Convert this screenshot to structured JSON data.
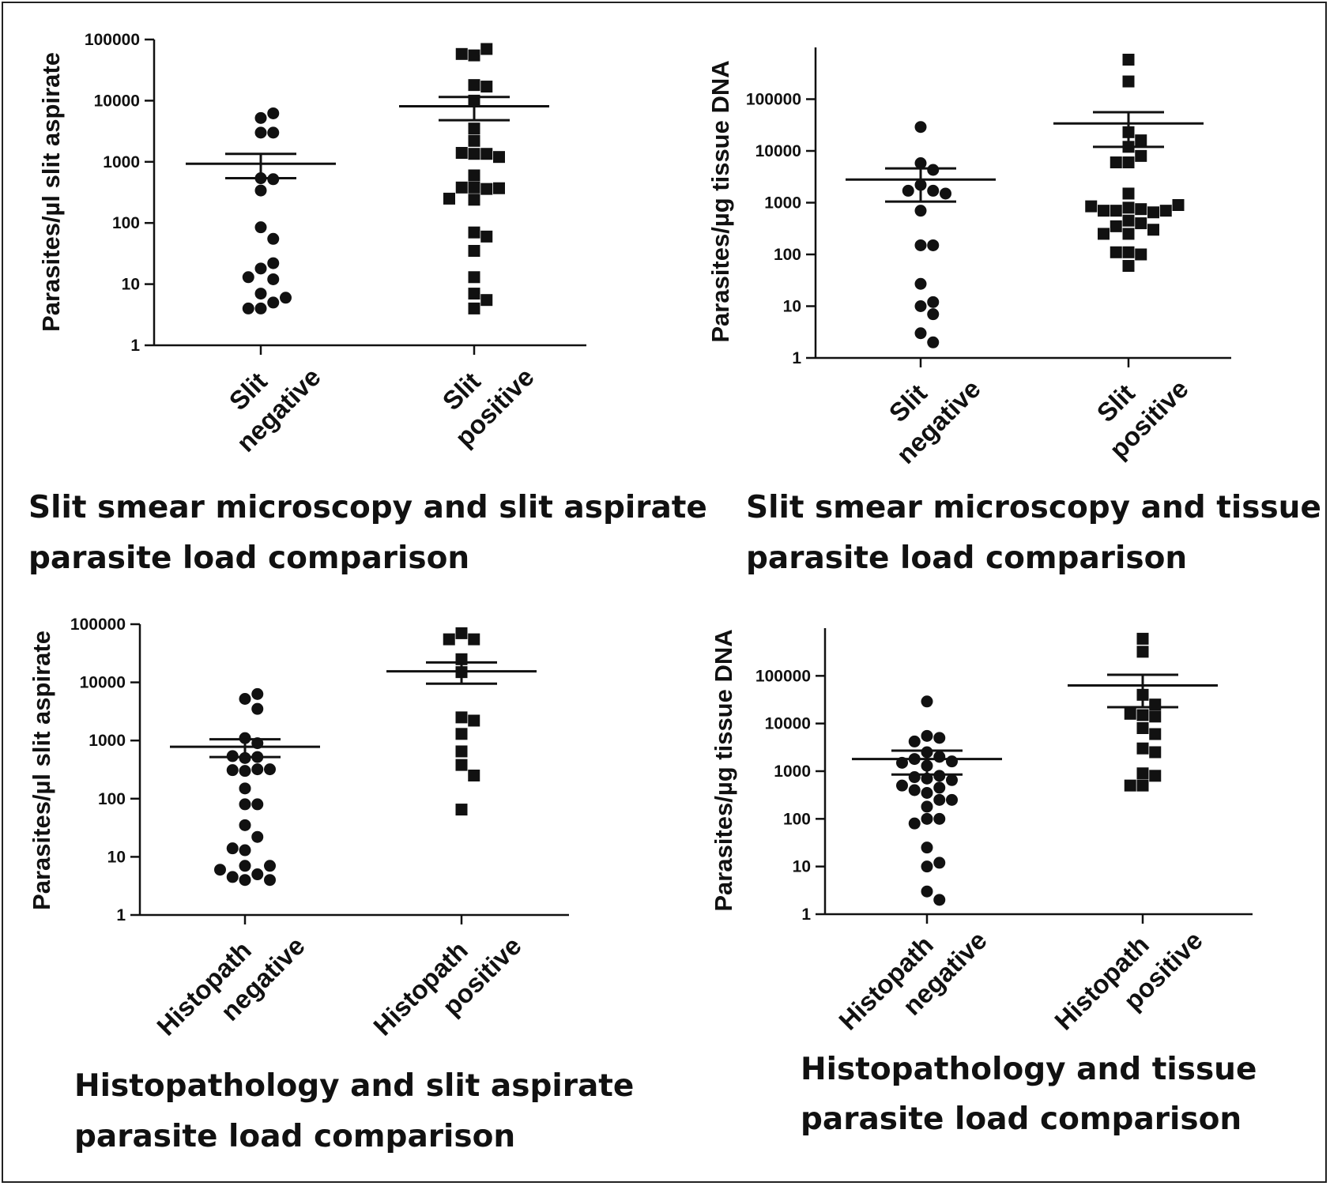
{
  "chart_data": [
    {
      "type": "scatter",
      "caption": [
        "Slit smear microscopy and slit aspirate",
        "parasite load comparison"
      ],
      "ylabel": "Parasites/µl slit aspirate",
      "yscale": "log",
      "ylim": [
        1,
        100000
      ],
      "yticks": [
        "1",
        "10",
        "100",
        "1000",
        "10000",
        "100000"
      ],
      "categories": [
        [
          "Slit",
          "negative"
        ],
        [
          "Slit",
          "positive"
        ]
      ],
      "series": [
        {
          "marker": "circle",
          "mean": 930,
          "sem": [
            540,
            1350
          ],
          "values": [
            5200,
            6200,
            3000,
            3000,
            540,
            340,
            520,
            85,
            55,
            18,
            12,
            13,
            22,
            7,
            5,
            4,
            4,
            6
          ]
        },
        {
          "marker": "square",
          "mean": 8100,
          "sem": [
            4800,
            11500
          ],
          "values": [
            55000,
            70000,
            58000,
            18000,
            17000,
            10000,
            3500,
            2200,
            1350,
            1350,
            1400,
            1200,
            600,
            380,
            360,
            380,
            370,
            250,
            240,
            70,
            60,
            35,
            13,
            7,
            5.5,
            4
          ]
        }
      ]
    },
    {
      "type": "scatter",
      "caption": [
        "Slit smear microscopy and tissue",
        "parasite load comparison"
      ],
      "ylabel": "Parasites/µg tissue DNA",
      "yscale": "log",
      "ylim": [
        1,
        1000000
      ],
      "yticks": [
        "1",
        "10",
        "100",
        "1000",
        "10000",
        "100000"
      ],
      "categories": [
        [
          "Slit",
          "negative"
        ],
        [
          "Slit",
          "positive"
        ]
      ],
      "series": [
        {
          "marker": "circle",
          "mean": 2800,
          "sem": [
            1050,
            4600
          ],
          "values": [
            29000,
            5800,
            4300,
            2200,
            1700,
            1700,
            1500,
            700,
            150,
            150,
            27,
            10,
            12,
            7,
            3,
            2
          ]
        },
        {
          "marker": "square",
          "mean": 34000,
          "sem": [
            12000,
            56000
          ],
          "values": [
            580000,
            220000,
            23000,
            16000,
            12000,
            8000,
            6000,
            6000,
            1500,
            800,
            750,
            700,
            650,
            700,
            700,
            850,
            900,
            450,
            400,
            350,
            300,
            250,
            250,
            110,
            100,
            110,
            60
          ]
        }
      ]
    },
    {
      "type": "scatter",
      "caption": [
        "Histopathology and slit aspirate",
        "parasite load comparison"
      ],
      "ylabel": "Parasites/µl slit aspirate",
      "yscale": "log",
      "ylim": [
        1,
        100000
      ],
      "yticks": [
        "1",
        "10",
        "100",
        "1000",
        "10000",
        "100000"
      ],
      "categories": [
        [
          "Histopath",
          "negative"
        ],
        [
          "Histopath",
          "positive"
        ]
      ],
      "series": [
        {
          "marker": "circle",
          "mean": 780,
          "sem": [
            520,
            1050
          ],
          "values": [
            5200,
            6300,
            3500,
            1100,
            900,
            500,
            520,
            540,
            320,
            300,
            310,
            320,
            150,
            80,
            80,
            35,
            22,
            13,
            14,
            7,
            5,
            4.5,
            4,
            4,
            6,
            7
          ]
        },
        {
          "marker": "square",
          "mean": 15500,
          "sem": [
            9500,
            22000
          ],
          "values": [
            70000,
            55000,
            55000,
            25000,
            15000,
            2500,
            2200,
            1300,
            650,
            380,
            250,
            65
          ]
        }
      ]
    },
    {
      "type": "scatter",
      "caption": [
        "Histopathology and tissue",
        "parasite load comparison"
      ],
      "ylabel": "Parasites/µg tissue DNA",
      "yscale": "log",
      "ylim": [
        1,
        1000000
      ],
      "yticks": [
        "1",
        "10",
        "100",
        "1000",
        "10000",
        "100000"
      ],
      "categories": [
        [
          "Histopath",
          "negative"
        ],
        [
          "Histopath",
          "positive"
        ]
      ],
      "series": [
        {
          "marker": "circle",
          "mean": 1800,
          "sem": [
            850,
            2700
          ],
          "values": [
            29000,
            5500,
            5000,
            4200,
            2500,
            2000,
            1800,
            1600,
            1500,
            1300,
            800,
            750,
            700,
            650,
            500,
            450,
            400,
            350,
            250,
            250,
            180,
            100,
            100,
            80,
            25,
            10,
            12,
            3,
            2
          ]
        },
        {
          "marker": "square",
          "mean": 63000,
          "sem": [
            22000,
            105000
          ],
          "values": [
            600000,
            320000,
            40000,
            25000,
            15000,
            16000,
            14000,
            8000,
            6000,
            3000,
            2500,
            900,
            800,
            500,
            500
          ]
        }
      ]
    }
  ]
}
